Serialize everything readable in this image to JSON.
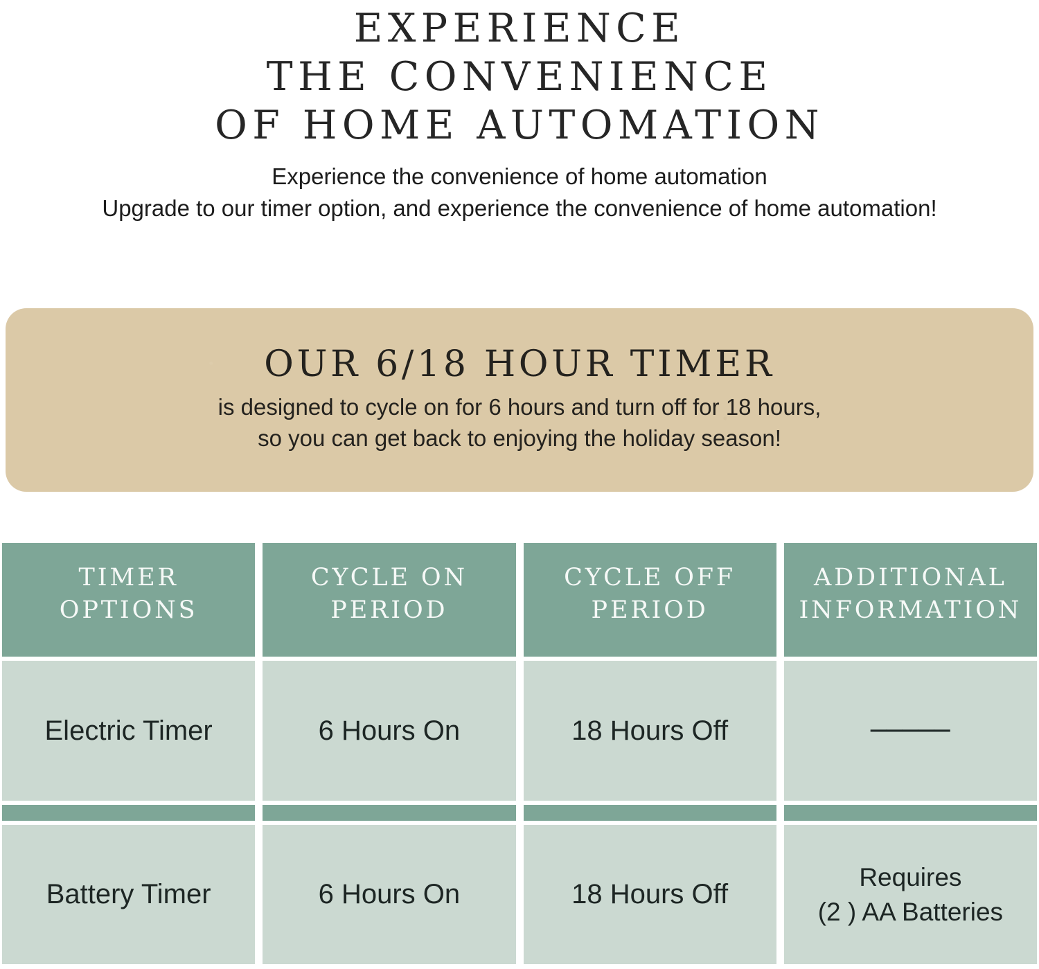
{
  "page": {
    "background": "#ffffff"
  },
  "hero": {
    "title_line1": "EXPERIENCE",
    "title_line2": "THE CONVENIENCE",
    "title_line3": "OF HOME AUTOMATION",
    "subtitle_line1": "Experience the convenience of home automation",
    "subtitle_line2": "Upgrade to our timer option, and experience the convenience of home automation!"
  },
  "kraft_panel": {
    "background": "#dbc9a7",
    "title": "OUR 6/18 HOUR TIMER",
    "body_line1": "is designed to cycle on for 6 hours and turn off for 18 hours,",
    "body_line2": "so you can get back to enjoying the holiday season!"
  },
  "timer_table": {
    "colors": {
      "header_bg": "#7ea697",
      "separator_bg": "#7ea697",
      "cell_bg": "#cbd9d1",
      "header_text": "#f6f9f7",
      "cell_text": "#1d2624"
    },
    "headers": [
      {
        "line1": "TIMER",
        "line2": "OPTIONS"
      },
      {
        "line1": "CYCLE ON",
        "line2": "PERIOD"
      },
      {
        "line1": "CYCLE OFF",
        "line2": "PERIOD"
      },
      {
        "line1": "ADDITIONAL",
        "line2": "INFORMATION"
      }
    ],
    "rows": [
      {
        "timer_option": "Electric Timer",
        "cycle_on": "6 Hours On",
        "cycle_off": "18 Hours Off",
        "additional_info": "─────"
      },
      {
        "timer_option": "Battery Timer",
        "cycle_on": "6 Hours On",
        "cycle_off": "18 Hours Off",
        "additional_info_line1": "Requires",
        "additional_info_line2": "(2 ) AA Batteries"
      }
    ]
  }
}
